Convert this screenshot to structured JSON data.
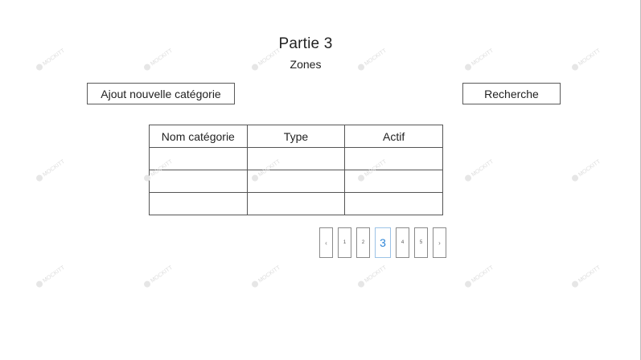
{
  "header": {
    "title": "Partie 3",
    "subtitle": "Zones"
  },
  "toolbar": {
    "add_label": "Ajout nouvelle catégorie",
    "search_label": "Recherche"
  },
  "table": {
    "columns": [
      "Nom catégorie",
      "Type",
      "Actif"
    ],
    "rows": [
      [
        "",
        "",
        ""
      ],
      [
        "",
        "",
        ""
      ],
      [
        "",
        "",
        ""
      ]
    ]
  },
  "pagination": {
    "prev": "‹",
    "pages": [
      "1",
      "2",
      "3",
      "4",
      "5"
    ],
    "current": "3",
    "next": "›"
  },
  "watermark": {
    "text": "MOCKITT"
  }
}
